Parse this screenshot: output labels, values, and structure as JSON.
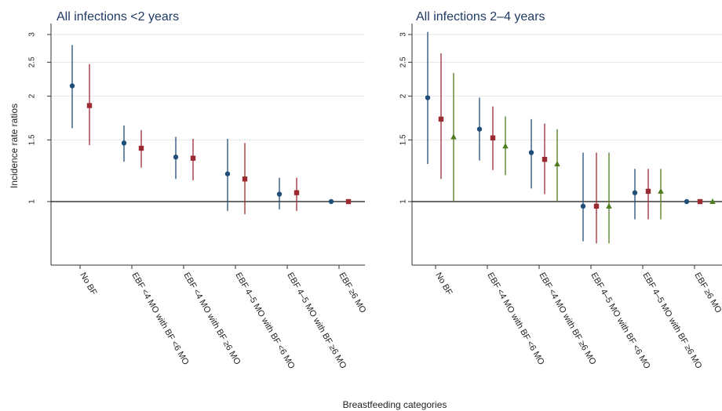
{
  "chart_data": {
    "type": "scatter",
    "xlabel": "Breastfeeding categories",
    "ylabel": "Incidence rate ratios",
    "y_scale": "log",
    "y_ticks": [
      1,
      1.5,
      2,
      2.5,
      3
    ],
    "y_tick_labels": [
      "1",
      "1.5",
      "2",
      "2.5",
      "3"
    ],
    "reference_line": 1,
    "grid": true,
    "series_colors": [
      "#1f4e79",
      "#9c2a33",
      "#4d7d1e"
    ],
    "series_markers": [
      "circle",
      "square",
      "triangle"
    ],
    "panels": [
      {
        "title": "All infections <2 years",
        "categories": [
          "No BF",
          "EBF <4 MO with BF <6 MO",
          "EBF <4 MO with BF ≥6 MO",
          "EBF 4–5 MO with BF <6 MO",
          "EBF 4–5 MO with BF ≥6 MO",
          "EBF ≥6 MO"
        ],
        "series": [
          {
            "point": [
              2.14,
              1.47,
              1.34,
              1.2,
              1.05,
              1.0
            ],
            "low": [
              1.62,
              1.3,
              1.16,
              0.94,
              0.95,
              1.0
            ],
            "high": [
              2.8,
              1.65,
              1.53,
              1.51,
              1.17,
              1.0
            ]
          },
          {
            "point": [
              1.88,
              1.42,
              1.33,
              1.16,
              1.06,
              1.0
            ],
            "low": [
              1.45,
              1.25,
              1.15,
              0.92,
              0.94,
              1.0
            ],
            "high": [
              2.47,
              1.6,
              1.51,
              1.47,
              1.17,
              1.0
            ]
          }
        ]
      },
      {
        "title": "All infections 2–4 years",
        "categories": [
          "No BF",
          "EBF <4 MO with BF <6 MO",
          "EBF <4 MO with BF ≥6 MO",
          "EBF 4–5 MO with BF <6 MO",
          "EBF 4–5 MO with BF ≥6 MO",
          "EBF ≥6 MO"
        ],
        "series": [
          {
            "point": [
              1.98,
              1.61,
              1.38,
              0.97,
              1.06,
              1.0
            ],
            "low": [
              1.28,
              1.31,
              1.09,
              0.77,
              0.89,
              1.0
            ],
            "high": [
              3.05,
              1.98,
              1.72,
              1.38,
              1.24,
              1.0
            ]
          },
          {
            "point": [
              1.72,
              1.52,
              1.32,
              0.97,
              1.07,
              1.0
            ],
            "low": [
              1.16,
              1.23,
              1.05,
              0.76,
              0.89,
              1.0
            ],
            "high": [
              2.65,
              1.87,
              1.67,
              1.38,
              1.24,
              1.0
            ]
          },
          {
            "point": [
              1.53,
              1.44,
              1.28,
              0.97,
              1.07,
              1.0
            ],
            "low": [
              1.0,
              1.19,
              1.0,
              0.76,
              0.89,
              1.0
            ],
            "high": [
              2.33,
              1.75,
              1.61,
              1.38,
              1.24,
              1.0
            ]
          }
        ]
      }
    ]
  }
}
